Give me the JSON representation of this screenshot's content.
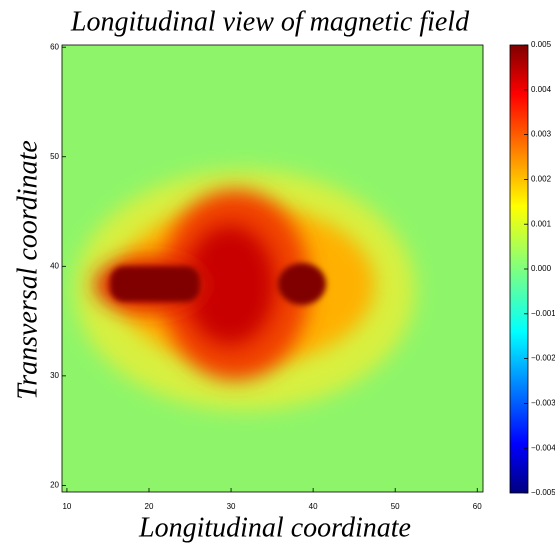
{
  "chart_data": {
    "type": "heatmap",
    "title": "Longitudinal view of magnetic field",
    "x_label": "Longitudinal coordinate",
    "y_label": "Transversal coordinate",
    "xlim": [
      9.4,
      60.7
    ],
    "xticks": [
      10,
      20,
      30,
      40,
      50,
      60
    ],
    "ylim": [
      19.4,
      60.2
    ],
    "yticks": [
      20,
      30,
      40,
      50,
      60
    ],
    "colormap": "jet",
    "clim": [
      -0.005,
      0.005
    ],
    "cticks": [
      {
        "value": -0.005,
        "label": "−0.005"
      },
      {
        "value": -0.004,
        "label": "−0.004"
      },
      {
        "value": -0.003,
        "label": "−0.003"
      },
      {
        "value": -0.002,
        "label": "−0.002"
      },
      {
        "value": -0.001,
        "label": "−0.001"
      },
      {
        "value": 0,
        "label": "0.000"
      },
      0.001,
      0.002,
      0.003,
      0.004,
      0.005
    ]
  }
}
